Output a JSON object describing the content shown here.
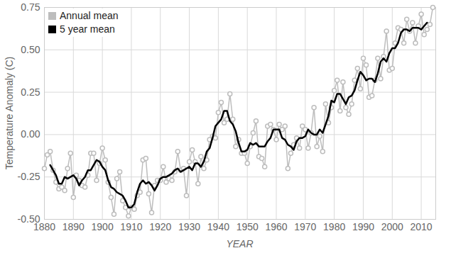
{
  "chart_data": {
    "type": "line",
    "y_label": "Temperature Anomaly (C)",
    "x_label": "YEAR",
    "x": [
      1880,
      1881,
      1882,
      1883,
      1884,
      1885,
      1886,
      1887,
      1888,
      1889,
      1890,
      1891,
      1892,
      1893,
      1894,
      1895,
      1896,
      1897,
      1898,
      1899,
      1900,
      1901,
      1902,
      1903,
      1904,
      1905,
      1906,
      1907,
      1908,
      1909,
      1910,
      1911,
      1912,
      1913,
      1914,
      1915,
      1916,
      1917,
      1918,
      1919,
      1920,
      1921,
      1922,
      1923,
      1924,
      1925,
      1926,
      1927,
      1928,
      1929,
      1930,
      1931,
      1932,
      1933,
      1934,
      1935,
      1936,
      1937,
      1938,
      1939,
      1940,
      1941,
      1942,
      1943,
      1944,
      1945,
      1946,
      1947,
      1948,
      1949,
      1950,
      1951,
      1952,
      1953,
      1954,
      1955,
      1956,
      1957,
      1958,
      1959,
      1960,
      1961,
      1962,
      1963,
      1964,
      1965,
      1966,
      1967,
      1968,
      1969,
      1970,
      1971,
      1972,
      1973,
      1974,
      1975,
      1976,
      1977,
      1978,
      1979,
      1980,
      1981,
      1982,
      1983,
      1984,
      1985,
      1986,
      1987,
      1988,
      1989,
      1990,
      1991,
      1992,
      1993,
      1994,
      1995,
      1996,
      1997,
      1998,
      1999,
      2000,
      2001,
      2002,
      2003,
      2004,
      2005,
      2006,
      2007,
      2008,
      2009,
      2010,
      2011,
      2012,
      2013,
      2014
    ],
    "series": [
      {
        "name": "Annual mean",
        "color": "#bdbdbd",
        "marker": "circle",
        "line_style": "solid",
        "values": [
          -0.2,
          -0.12,
          -0.1,
          -0.21,
          -0.28,
          -0.32,
          -0.31,
          -0.33,
          -0.2,
          -0.11,
          -0.37,
          -0.24,
          -0.27,
          -0.3,
          -0.31,
          -0.24,
          -0.11,
          -0.11,
          -0.27,
          -0.17,
          -0.08,
          -0.15,
          -0.28,
          -0.37,
          -0.47,
          -0.26,
          -0.22,
          -0.39,
          -0.43,
          -0.48,
          -0.43,
          -0.44,
          -0.36,
          -0.34,
          -0.15,
          -0.14,
          -0.35,
          -0.46,
          -0.3,
          -0.27,
          -0.27,
          -0.19,
          -0.28,
          -0.26,
          -0.27,
          -0.22,
          -0.1,
          -0.21,
          -0.2,
          -0.36,
          -0.16,
          -0.09,
          -0.16,
          -0.29,
          -0.13,
          -0.2,
          -0.15,
          -0.03,
          -0.01,
          -0.02,
          0.13,
          0.19,
          0.07,
          0.09,
          0.24,
          0.09,
          -0.07,
          -0.03,
          -0.11,
          -0.11,
          -0.17,
          -0.07,
          0.01,
          0.08,
          -0.13,
          -0.14,
          -0.19,
          0.05,
          0.06,
          0.03,
          -0.03,
          0.06,
          0.03,
          0.05,
          -0.2,
          -0.11,
          -0.06,
          -0.02,
          -0.08,
          0.05,
          0.03,
          -0.08,
          0.01,
          0.16,
          -0.07,
          -0.01,
          -0.1,
          0.18,
          0.07,
          0.16,
          0.26,
          0.32,
          0.14,
          0.31,
          0.16,
          0.12,
          0.18,
          0.32,
          0.39,
          0.27,
          0.45,
          0.41,
          0.22,
          0.23,
          0.32,
          0.45,
          0.33,
          0.46,
          0.61,
          0.38,
          0.39,
          0.54,
          0.63,
          0.62,
          0.54,
          0.68,
          0.61,
          0.66,
          0.54,
          0.64,
          0.71,
          0.59,
          0.62,
          0.65,
          0.75
        ]
      },
      {
        "name": "5 year mean",
        "color": "#000000",
        "line_style": "solid",
        "values": [
          null,
          null,
          -0.18,
          -0.21,
          -0.24,
          -0.29,
          -0.29,
          -0.25,
          -0.26,
          -0.25,
          -0.24,
          -0.26,
          -0.3,
          -0.27,
          -0.25,
          -0.21,
          -0.21,
          -0.18,
          -0.15,
          -0.16,
          -0.19,
          -0.21,
          -0.27,
          -0.31,
          -0.32,
          -0.34,
          -0.35,
          -0.36,
          -0.39,
          -0.43,
          -0.43,
          -0.41,
          -0.34,
          -0.29,
          -0.27,
          -0.29,
          -0.28,
          -0.3,
          -0.33,
          -0.3,
          -0.26,
          -0.25,
          -0.25,
          -0.24,
          -0.23,
          -0.21,
          -0.2,
          -0.22,
          -0.21,
          -0.2,
          -0.19,
          -0.21,
          -0.17,
          -0.17,
          -0.19,
          -0.16,
          -0.1,
          -0.08,
          -0.02,
          0.05,
          0.07,
          0.09,
          0.14,
          0.14,
          0.08,
          0.06,
          0.02,
          -0.05,
          -0.1,
          -0.1,
          -0.09,
          -0.05,
          -0.06,
          -0.05,
          -0.07,
          -0.07,
          -0.07,
          -0.04,
          -0.02,
          0.03,
          0.03,
          0.03,
          -0.02,
          -0.03,
          -0.06,
          -0.07,
          -0.09,
          -0.04,
          -0.02,
          -0.02,
          -0.01,
          0.03,
          0.01,
          0.0,
          0.0,
          0.03,
          0.01,
          0.06,
          0.11,
          0.2,
          0.19,
          0.24,
          0.24,
          0.21,
          0.18,
          0.22,
          0.23,
          0.26,
          0.32,
          0.37,
          0.35,
          0.32,
          0.33,
          0.33,
          0.31,
          0.36,
          0.43,
          0.45,
          0.43,
          0.48,
          0.51,
          0.51,
          0.54,
          0.6,
          0.62,
          0.62,
          0.61,
          0.63,
          0.63,
          0.63,
          0.62,
          0.64,
          0.66,
          null,
          null
        ]
      }
    ],
    "xlim": [
      1880,
      2015
    ],
    "xticks": [
      1880,
      1890,
      1900,
      1910,
      1920,
      1930,
      1940,
      1950,
      1960,
      1970,
      1980,
      1990,
      2000,
      2010
    ],
    "ylim": [
      -0.5,
      0.75
    ],
    "yticks": [
      {
        "value": -0.5,
        "label": "-0.50"
      },
      {
        "value": -0.25,
        "label": "-0.25"
      },
      {
        "value": 0,
        "label": "0.00"
      },
      {
        "value": 0.25,
        "label": "0.25"
      },
      {
        "value": 0.5,
        "label": "0.50"
      },
      {
        "value": 0.75,
        "label": "0.75"
      }
    ],
    "grid": true,
    "legend": "top-left"
  }
}
